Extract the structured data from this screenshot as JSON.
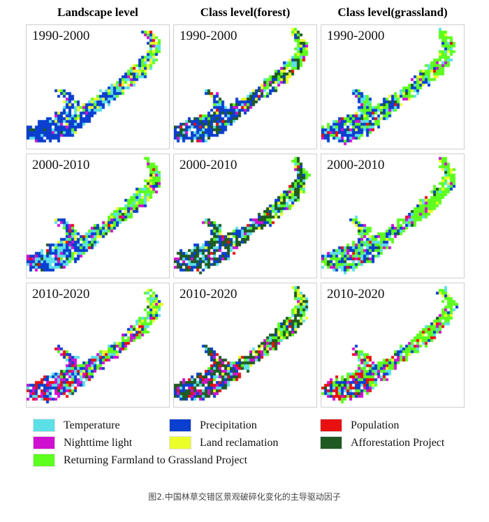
{
  "columns": [
    "Landscape level",
    "Class level(forest)",
    "Class level(grassland)"
  ],
  "rows": [
    "1990-2000",
    "2000-2010",
    "2010-2020"
  ],
  "legend": [
    {
      "label": "Temperature",
      "color": "#5ce0e8"
    },
    {
      "label": "Precipitation",
      "color": "#0a3fd0"
    },
    {
      "label": "Population",
      "color": "#e81010"
    },
    {
      "label": "Nighttime light",
      "color": "#d010d0"
    },
    {
      "label": "Land reclamation",
      "color": "#eaff2a"
    },
    {
      "label": "Afforestation Project",
      "color": "#1f5a22"
    },
    {
      "label": "Returning Farmland to Grassland Project",
      "color": "#5cff1e"
    }
  ],
  "caption": "图2.中国林草交错区景观破碎化变化的主导驱动因子"
}
